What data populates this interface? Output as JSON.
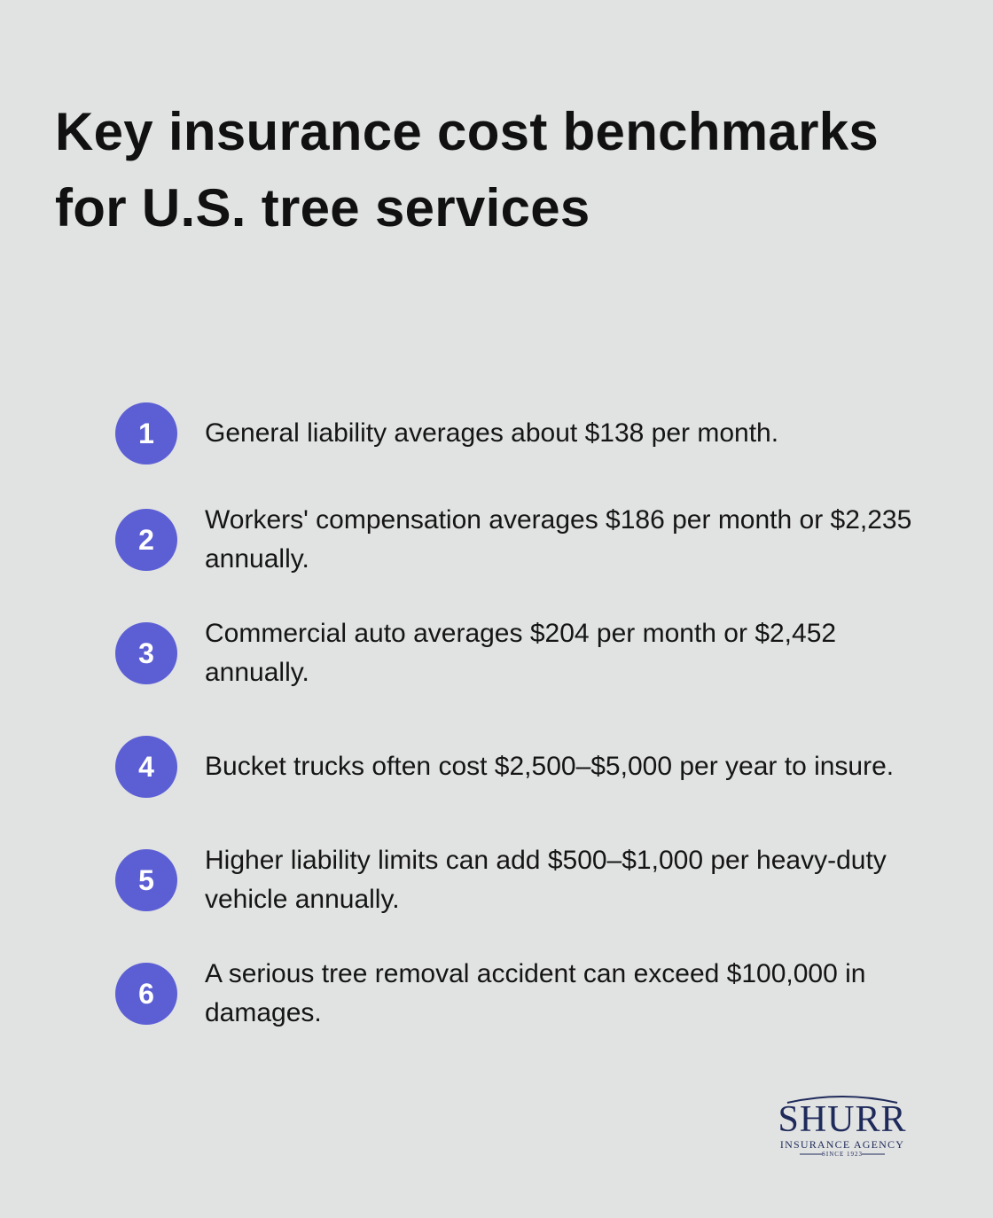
{
  "header": {
    "title": "Key insurance cost benchmarks for U.S. tree services"
  },
  "items": [
    {
      "number": "1",
      "text": "General liability averages about $138 per month."
    },
    {
      "number": "2",
      "text": "Workers' compensation averages $186 per month or $2,235 annually."
    },
    {
      "number": "3",
      "text": "Commercial auto averages $204 per month or $2,452 annually."
    },
    {
      "number": "4",
      "text": "Bucket trucks often cost $2,500–$5,000 per year to insure."
    },
    {
      "number": "5",
      "text": "Higher liability limits can add $500–$1,000 per heavy-duty vehicle annually."
    },
    {
      "number": "6",
      "text": "A serious tree removal accident can exceed $100,000 in damages."
    }
  ],
  "logo": {
    "name": "SHURR",
    "tagline": "INSURANCE AGENCY",
    "since": "SINCE 1923"
  }
}
